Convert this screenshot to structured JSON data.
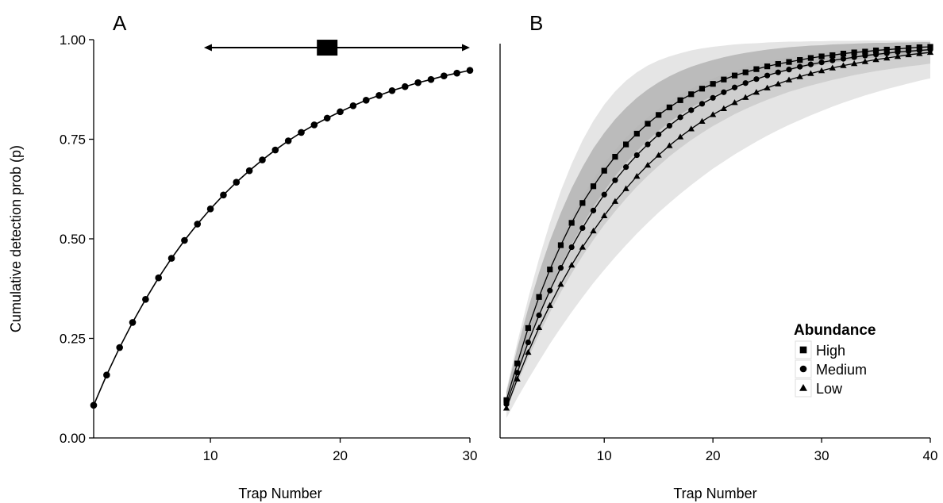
{
  "chart_data": [
    {
      "panel": "A",
      "type": "line",
      "xlabel": "Trap Number",
      "ylabel": "Cumulative detection prob (p)",
      "xlim": [
        1,
        30
      ],
      "ylim": [
        0,
        1
      ],
      "x_ticks": [
        10,
        20,
        30
      ],
      "y_ticks": [
        0.0,
        0.25,
        0.5,
        0.75,
        1.0
      ],
      "y_tick_labels": [
        "0.00",
        "0.25",
        "0.50",
        "0.75",
        "1.00"
      ],
      "grid": false,
      "marker": "circle",
      "x": [
        1,
        2,
        3,
        4,
        5,
        6,
        7,
        8,
        9,
        10,
        11,
        12,
        13,
        14,
        15,
        16,
        17,
        18,
        19,
        20,
        21,
        22,
        23,
        24,
        25,
        26,
        27,
        28,
        29,
        30
      ],
      "values": [
        0.082,
        0.158,
        0.227,
        0.29,
        0.348,
        0.402,
        0.451,
        0.496,
        0.537,
        0.575,
        0.61,
        0.642,
        0.671,
        0.698,
        0.723,
        0.746,
        0.767,
        0.786,
        0.803,
        0.819,
        0.834,
        0.848,
        0.86,
        0.872,
        0.882,
        0.892,
        0.9,
        0.909,
        0.916,
        0.923
      ],
      "interval_annotation": {
        "y": 0.98,
        "estimate": 19,
        "lower": 9.5,
        "upper": 30,
        "marker": "square",
        "arrows": "both"
      }
    },
    {
      "panel": "B",
      "type": "line",
      "xlabel": "Trap Number",
      "ylabel": "",
      "xlim": [
        1,
        40
      ],
      "ylim": [
        0,
        1
      ],
      "x_ticks": [
        10,
        20,
        30,
        40
      ],
      "grid": false,
      "legend": {
        "title": "Abundance",
        "placement": "bottom-right"
      },
      "x": [
        1,
        2,
        3,
        4,
        5,
        6,
        7,
        8,
        9,
        10,
        11,
        12,
        13,
        14,
        15,
        16,
        17,
        18,
        19,
        20,
        21,
        22,
        23,
        24,
        25,
        26,
        27,
        28,
        29,
        30,
        31,
        32,
        33,
        34,
        35,
        36,
        37,
        38,
        39,
        40
      ],
      "series": [
        {
          "name": "High",
          "marker": "square",
          "values": [
            0.095,
            0.187,
            0.276,
            0.354,
            0.423,
            0.484,
            0.54,
            0.59,
            0.632,
            0.671,
            0.706,
            0.737,
            0.764,
            0.789,
            0.811,
            0.83,
            0.848,
            0.863,
            0.877,
            0.889,
            0.9,
            0.91,
            0.918,
            0.926,
            0.933,
            0.939,
            0.944,
            0.949,
            0.954,
            0.958,
            0.961,
            0.965,
            0.968,
            0.97,
            0.973,
            0.975,
            0.977,
            0.979,
            0.981,
            0.982
          ],
          "band_low": [
            0.08,
            0.16,
            0.235,
            0.305,
            0.37,
            0.43,
            0.485,
            0.535,
            0.58,
            0.62,
            0.657,
            0.69,
            0.72,
            0.747,
            0.771,
            0.793,
            0.812,
            0.829,
            0.845,
            0.859,
            0.871,
            0.882,
            0.892,
            0.901,
            0.909,
            0.916,
            0.922,
            0.928,
            0.933,
            0.938,
            0.942,
            0.946,
            0.949,
            0.952,
            0.955,
            0.958,
            0.96,
            0.962,
            0.964,
            0.966
          ],
          "band_high": [
            0.115,
            0.225,
            0.325,
            0.415,
            0.495,
            0.565,
            0.627,
            0.68,
            0.727,
            0.766,
            0.8,
            0.829,
            0.854,
            0.875,
            0.893,
            0.908,
            0.921,
            0.932,
            0.941,
            0.949,
            0.956,
            0.962,
            0.967,
            0.971,
            0.975,
            0.978,
            0.981,
            0.983,
            0.985,
            0.986,
            0.988,
            0.989,
            0.99,
            0.991,
            0.992,
            0.992,
            0.993,
            0.993,
            0.994,
            0.994
          ]
        },
        {
          "name": "Medium",
          "marker": "circle",
          "values": [
            0.085,
            0.164,
            0.24,
            0.308,
            0.37,
            0.427,
            0.479,
            0.527,
            0.571,
            0.611,
            0.647,
            0.68,
            0.71,
            0.737,
            0.762,
            0.784,
            0.805,
            0.823,
            0.839,
            0.854,
            0.868,
            0.88,
            0.891,
            0.901,
            0.91,
            0.918,
            0.925,
            0.932,
            0.938,
            0.943,
            0.948,
            0.952,
            0.956,
            0.96,
            0.963,
            0.966,
            0.969,
            0.971,
            0.973,
            0.975
          ],
          "band_low": [
            0.07,
            0.138,
            0.2,
            0.26,
            0.315,
            0.366,
            0.413,
            0.457,
            0.497,
            0.535,
            0.569,
            0.601,
            0.631,
            0.658,
            0.683,
            0.707,
            0.728,
            0.748,
            0.766,
            0.783,
            0.798,
            0.813,
            0.826,
            0.838,
            0.849,
            0.859,
            0.869,
            0.877,
            0.885,
            0.892,
            0.899,
            0.905,
            0.911,
            0.916,
            0.921,
            0.925,
            0.929,
            0.933,
            0.936,
            0.94
          ],
          "band_high": [
            0.105,
            0.2,
            0.288,
            0.367,
            0.437,
            0.5,
            0.556,
            0.606,
            0.65,
            0.689,
            0.723,
            0.754,
            0.781,
            0.805,
            0.826,
            0.845,
            0.862,
            0.877,
            0.891,
            0.903,
            0.913,
            0.922,
            0.931,
            0.938,
            0.945,
            0.951,
            0.956,
            0.96,
            0.964,
            0.968,
            0.971,
            0.974,
            0.977,
            0.979,
            0.981,
            0.983,
            0.984,
            0.986,
            0.987,
            0.988
          ]
        },
        {
          "name": "Low",
          "marker": "triangle",
          "values": [
            0.075,
            0.148,
            0.215,
            0.277,
            0.333,
            0.386,
            0.434,
            0.479,
            0.52,
            0.558,
            0.594,
            0.626,
            0.657,
            0.685,
            0.71,
            0.734,
            0.756,
            0.776,
            0.795,
            0.812,
            0.827,
            0.842,
            0.855,
            0.868,
            0.879,
            0.889,
            0.899,
            0.907,
            0.915,
            0.922,
            0.929,
            0.935,
            0.94,
            0.945,
            0.95,
            0.954,
            0.958,
            0.962,
            0.965,
            0.968
          ],
          "band_low": [
            0.05,
            0.1,
            0.147,
            0.192,
            0.236,
            0.277,
            0.316,
            0.353,
            0.389,
            0.422,
            0.454,
            0.484,
            0.513,
            0.54,
            0.566,
            0.59,
            0.613,
            0.635,
            0.656,
            0.676,
            0.694,
            0.712,
            0.728,
            0.744,
            0.759,
            0.773,
            0.786,
            0.798,
            0.81,
            0.821,
            0.832,
            0.842,
            0.851,
            0.86,
            0.868,
            0.876,
            0.883,
            0.89,
            0.897,
            0.903
          ],
          "band_high": [
            0.12,
            0.24,
            0.35,
            0.45,
            0.54,
            0.62,
            0.688,
            0.747,
            0.796,
            0.837,
            0.87,
            0.897,
            0.918,
            0.935,
            0.948,
            0.958,
            0.966,
            0.973,
            0.978,
            0.982,
            0.985,
            0.988,
            0.99,
            0.991,
            0.993,
            0.994,
            0.995,
            0.995,
            0.996,
            0.996,
            0.997,
            0.997,
            0.997,
            0.998,
            0.998,
            0.998,
            0.998,
            0.998,
            0.998,
            0.998
          ]
        }
      ]
    }
  ]
}
